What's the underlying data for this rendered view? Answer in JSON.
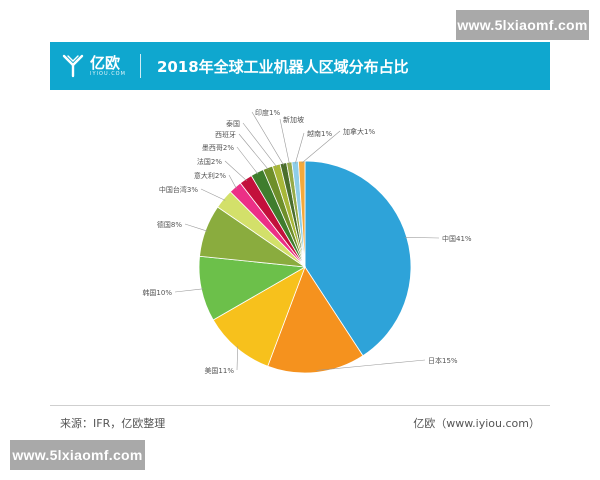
{
  "watermark": {
    "text": "www.5lxiaomf.com"
  },
  "header": {
    "logo_name": "亿欧",
    "logo_sub": "IYIOU.COM",
    "title": "2018年全球工业机器人区域分布占比",
    "background": "#0fa7cf"
  },
  "chart_data": {
    "type": "pie",
    "title": "2018年全球工业机器人区域分布占比",
    "slices": [
      {
        "label": "中国41%",
        "value": 41,
        "color": "#2ea3d9"
      },
      {
        "label": "日本15%",
        "value": 15,
        "color": "#f5921e"
      },
      {
        "label": "美国11%",
        "value": 11,
        "color": "#f7c11c"
      },
      {
        "label": "韩国10%",
        "value": 10,
        "color": "#6cc04a"
      },
      {
        "label": "德国8%",
        "value": 8,
        "color": "#8aac3e"
      },
      {
        "label": "中国台湾3%",
        "value": 3,
        "color": "#d3e06a"
      },
      {
        "label": "意大利2%",
        "value": 2,
        "color": "#ec2f86"
      },
      {
        "label": "法国2%",
        "value": 2,
        "color": "#c3103c"
      },
      {
        "label": "墨西哥2%",
        "value": 2,
        "color": "#3f7d2d"
      },
      {
        "label": "西班牙",
        "value": 1.5,
        "color": "#6f8f2a"
      },
      {
        "label": "泰国",
        "value": 1.2,
        "color": "#a8b738"
      },
      {
        "label": "印度1%",
        "value": 1,
        "color": "#4b6e2c"
      },
      {
        "label": "新加坡",
        "value": 0.8,
        "color": "#95aa48"
      },
      {
        "label": "越南1%",
        "value": 1,
        "color": "#8ecde6"
      },
      {
        "label": "加拿大1%",
        "value": 1,
        "color": "#f4a93b"
      }
    ]
  },
  "footer": {
    "source": "来源：IFR，亿欧整理",
    "site": "亿欧（www.iyiou.com）"
  }
}
